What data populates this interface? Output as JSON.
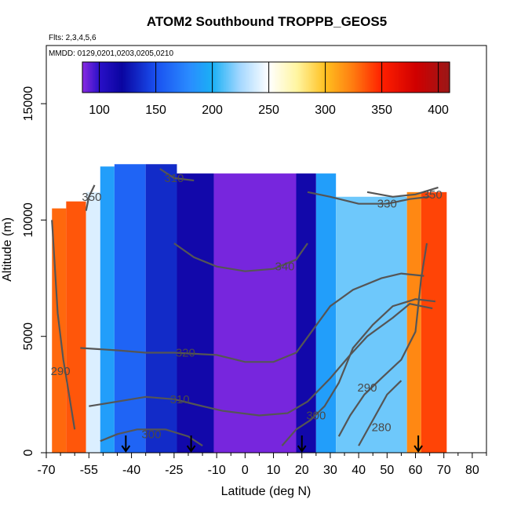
{
  "chart_data": {
    "type": "heatmap",
    "title": "ATOM2 Southbound TROPPB_GEOS5",
    "flights_label": "Flts: 2,3,4,5,6",
    "dates_label": "MMDD: 0129,0201,0203,0205,0210",
    "xlabel": "Latitude (deg N)",
    "ylabel": "Altitude (m)",
    "xlim": [
      -70,
      85
    ],
    "ylim": [
      0,
      17500
    ],
    "x_ticks": [
      -70,
      -55,
      -40,
      -25,
      -10,
      0,
      10,
      20,
      30,
      40,
      50,
      60,
      70,
      80
    ],
    "y_ticks": [
      0,
      5000,
      10000,
      15000
    ],
    "colorbar": {
      "range": [
        85,
        410
      ],
      "ticks": [
        100,
        150,
        200,
        250,
        300,
        350,
        400
      ],
      "stops": [
        {
          "v": 85,
          "c": "#8A2BE2"
        },
        {
          "v": 100,
          "c": "#2a10c8"
        },
        {
          "v": 120,
          "c": "#0a05a0"
        },
        {
          "v": 150,
          "c": "#1a50f0"
        },
        {
          "v": 180,
          "c": "#2a8cff"
        },
        {
          "v": 200,
          "c": "#1ab0f5"
        },
        {
          "v": 225,
          "c": "#a6d8ff"
        },
        {
          "v": 250,
          "c": "#ffffff"
        },
        {
          "v": 275,
          "c": "#fff5a0"
        },
        {
          "v": 300,
          "c": "#ffc020"
        },
        {
          "v": 325,
          "c": "#ff7a10"
        },
        {
          "v": 350,
          "c": "#ff2000"
        },
        {
          "v": 380,
          "c": "#d00000"
        },
        {
          "v": 410,
          "c": "#9a1818"
        }
      ]
    },
    "columns": [
      {
        "lat": [
          -68,
          -63
        ],
        "alt": [
          0,
          10500
        ],
        "value": 330
      },
      {
        "lat": [
          -63,
          -56
        ],
        "alt": [
          0,
          10800
        ],
        "value": 335
      },
      {
        "lat": [
          -56,
          -51
        ],
        "alt": [
          0,
          11200
        ],
        "value": 240
      },
      {
        "lat": [
          -51,
          -46
        ],
        "alt": [
          0,
          12300
        ],
        "value": 190
      },
      {
        "lat": [
          -46,
          -35
        ],
        "alt": [
          0,
          12400
        ],
        "value": 160
      },
      {
        "lat": [
          -35,
          -24
        ],
        "alt": [
          0,
          12400
        ],
        "value": 135
      },
      {
        "lat": [
          -24,
          -11
        ],
        "alt": [
          0,
          12000
        ],
        "value": 115
      },
      {
        "lat": [
          -11,
          18
        ],
        "alt": [
          0,
          12000
        ],
        "value": 88
      },
      {
        "lat": [
          18,
          25
        ],
        "alt": [
          0,
          12000
        ],
        "value": 115
      },
      {
        "lat": [
          25,
          32
        ],
        "alt": [
          0,
          12000
        ],
        "value": 190
      },
      {
        "lat": [
          32,
          57
        ],
        "alt": [
          0,
          11000
        ],
        "value": 215
      },
      {
        "lat": [
          57,
          62
        ],
        "alt": [
          0,
          11200
        ],
        "value": 320
      },
      {
        "lat": [
          62,
          71
        ],
        "alt": [
          0,
          11200
        ],
        "value": 340
      }
    ],
    "contours": [
      {
        "label": "280",
        "values_label_at": [
          48,
          1100
        ],
        "points": [
          [
            40,
            300
          ],
          [
            45,
            1400
          ],
          [
            50,
            2500
          ],
          [
            55,
            3100
          ]
        ]
      },
      {
        "label": "290",
        "values_label_at": [
          -65,
          3500
        ],
        "points": [
          [
            -68,
            10000
          ],
          [
            -67,
            8000
          ],
          [
            -66,
            6000
          ],
          [
            -64,
            4000
          ],
          [
            -62,
            2500
          ],
          [
            -60,
            1000
          ]
        ]
      },
      {
        "label": "290",
        "values_label_at": [
          43,
          2800
        ],
        "points": [
          [
            33,
            700
          ],
          [
            37,
            1600
          ],
          [
            42,
            2500
          ],
          [
            48,
            3200
          ],
          [
            55,
            4000
          ],
          [
            60,
            5200
          ],
          [
            62,
            7500
          ],
          [
            64,
            9000
          ]
        ]
      },
      {
        "label": "300",
        "values_label_at": [
          -33,
          800
        ],
        "points": [
          [
            -51,
            500
          ],
          [
            -45,
            800
          ],
          [
            -38,
            1000
          ],
          [
            -28,
            1000
          ],
          [
            -20,
            700
          ],
          [
            -15,
            300
          ]
        ]
      },
      {
        "label": "300",
        "values_label_at": [
          25,
          1600
        ],
        "points": [
          [
            13,
            300
          ],
          [
            18,
            1000
          ],
          [
            23,
            1400
          ],
          [
            28,
            2000
          ],
          [
            33,
            3000
          ],
          [
            38,
            4500
          ],
          [
            45,
            5500
          ],
          [
            52,
            6300
          ],
          [
            60,
            6600
          ],
          [
            67,
            6500
          ]
        ]
      },
      {
        "label": "310",
        "values_label_at": [
          -23,
          2300
        ],
        "points": [
          [
            -55,
            2000
          ],
          [
            -45,
            2200
          ],
          [
            -35,
            2400
          ],
          [
            -25,
            2300
          ],
          [
            -15,
            2000
          ],
          [
            -8,
            1800
          ],
          [
            5,
            1600
          ],
          [
            15,
            1700
          ],
          [
            22,
            2200
          ],
          [
            30,
            3200
          ],
          [
            37,
            4200
          ],
          [
            43,
            5000
          ],
          [
            52,
            5800
          ],
          [
            58,
            6400
          ],
          [
            66,
            6200
          ]
        ]
      },
      {
        "label": "320",
        "values_label_at": [
          -21,
          4300
        ],
        "points": [
          [
            -58,
            4500
          ],
          [
            -45,
            4400
          ],
          [
            -35,
            4300
          ],
          [
            -25,
            4300
          ],
          [
            -10,
            4200
          ],
          [
            0,
            3900
          ],
          [
            10,
            3900
          ],
          [
            18,
            4300
          ],
          [
            24,
            5300
          ],
          [
            30,
            6300
          ],
          [
            38,
            7000
          ],
          [
            48,
            7500
          ],
          [
            55,
            7700
          ],
          [
            63,
            7600
          ]
        ]
      },
      {
        "label": "330",
        "values_label_at": [
          50,
          10700
        ],
        "points": [
          [
            22,
            11200
          ],
          [
            30,
            11000
          ],
          [
            40,
            10700
          ],
          [
            50,
            10700
          ],
          [
            58,
            10900
          ],
          [
            65,
            11000
          ]
        ]
      },
      {
        "label": "340",
        "values_label_at": [
          14,
          8000
        ],
        "points": [
          [
            -25,
            9000
          ],
          [
            -18,
            8400
          ],
          [
            -10,
            8000
          ],
          [
            0,
            7800
          ],
          [
            10,
            7900
          ],
          [
            18,
            8300
          ],
          [
            22,
            9000
          ]
        ]
      },
      {
        "label": "350",
        "values_label_at": [
          66,
          11100
        ],
        "points": [
          [
            43,
            11200
          ],
          [
            52,
            11000
          ],
          [
            60,
            11100
          ],
          [
            68,
            11400
          ]
        ]
      },
      {
        "label": "350",
        "values_label_at": [
          -54,
          11000
        ],
        "points": [
          [
            -56,
            10400
          ],
          [
            -55,
            11000
          ],
          [
            -53,
            11500
          ]
        ]
      },
      {
        "label": "310",
        "values_label_at": [
          -25,
          11800
        ],
        "points": [
          [
            -30,
            12200
          ],
          [
            -25,
            11800
          ],
          [
            -18,
            11700
          ]
        ]
      }
    ],
    "arrows_at_lat": [
      -42,
      -19,
      20,
      61
    ]
  }
}
